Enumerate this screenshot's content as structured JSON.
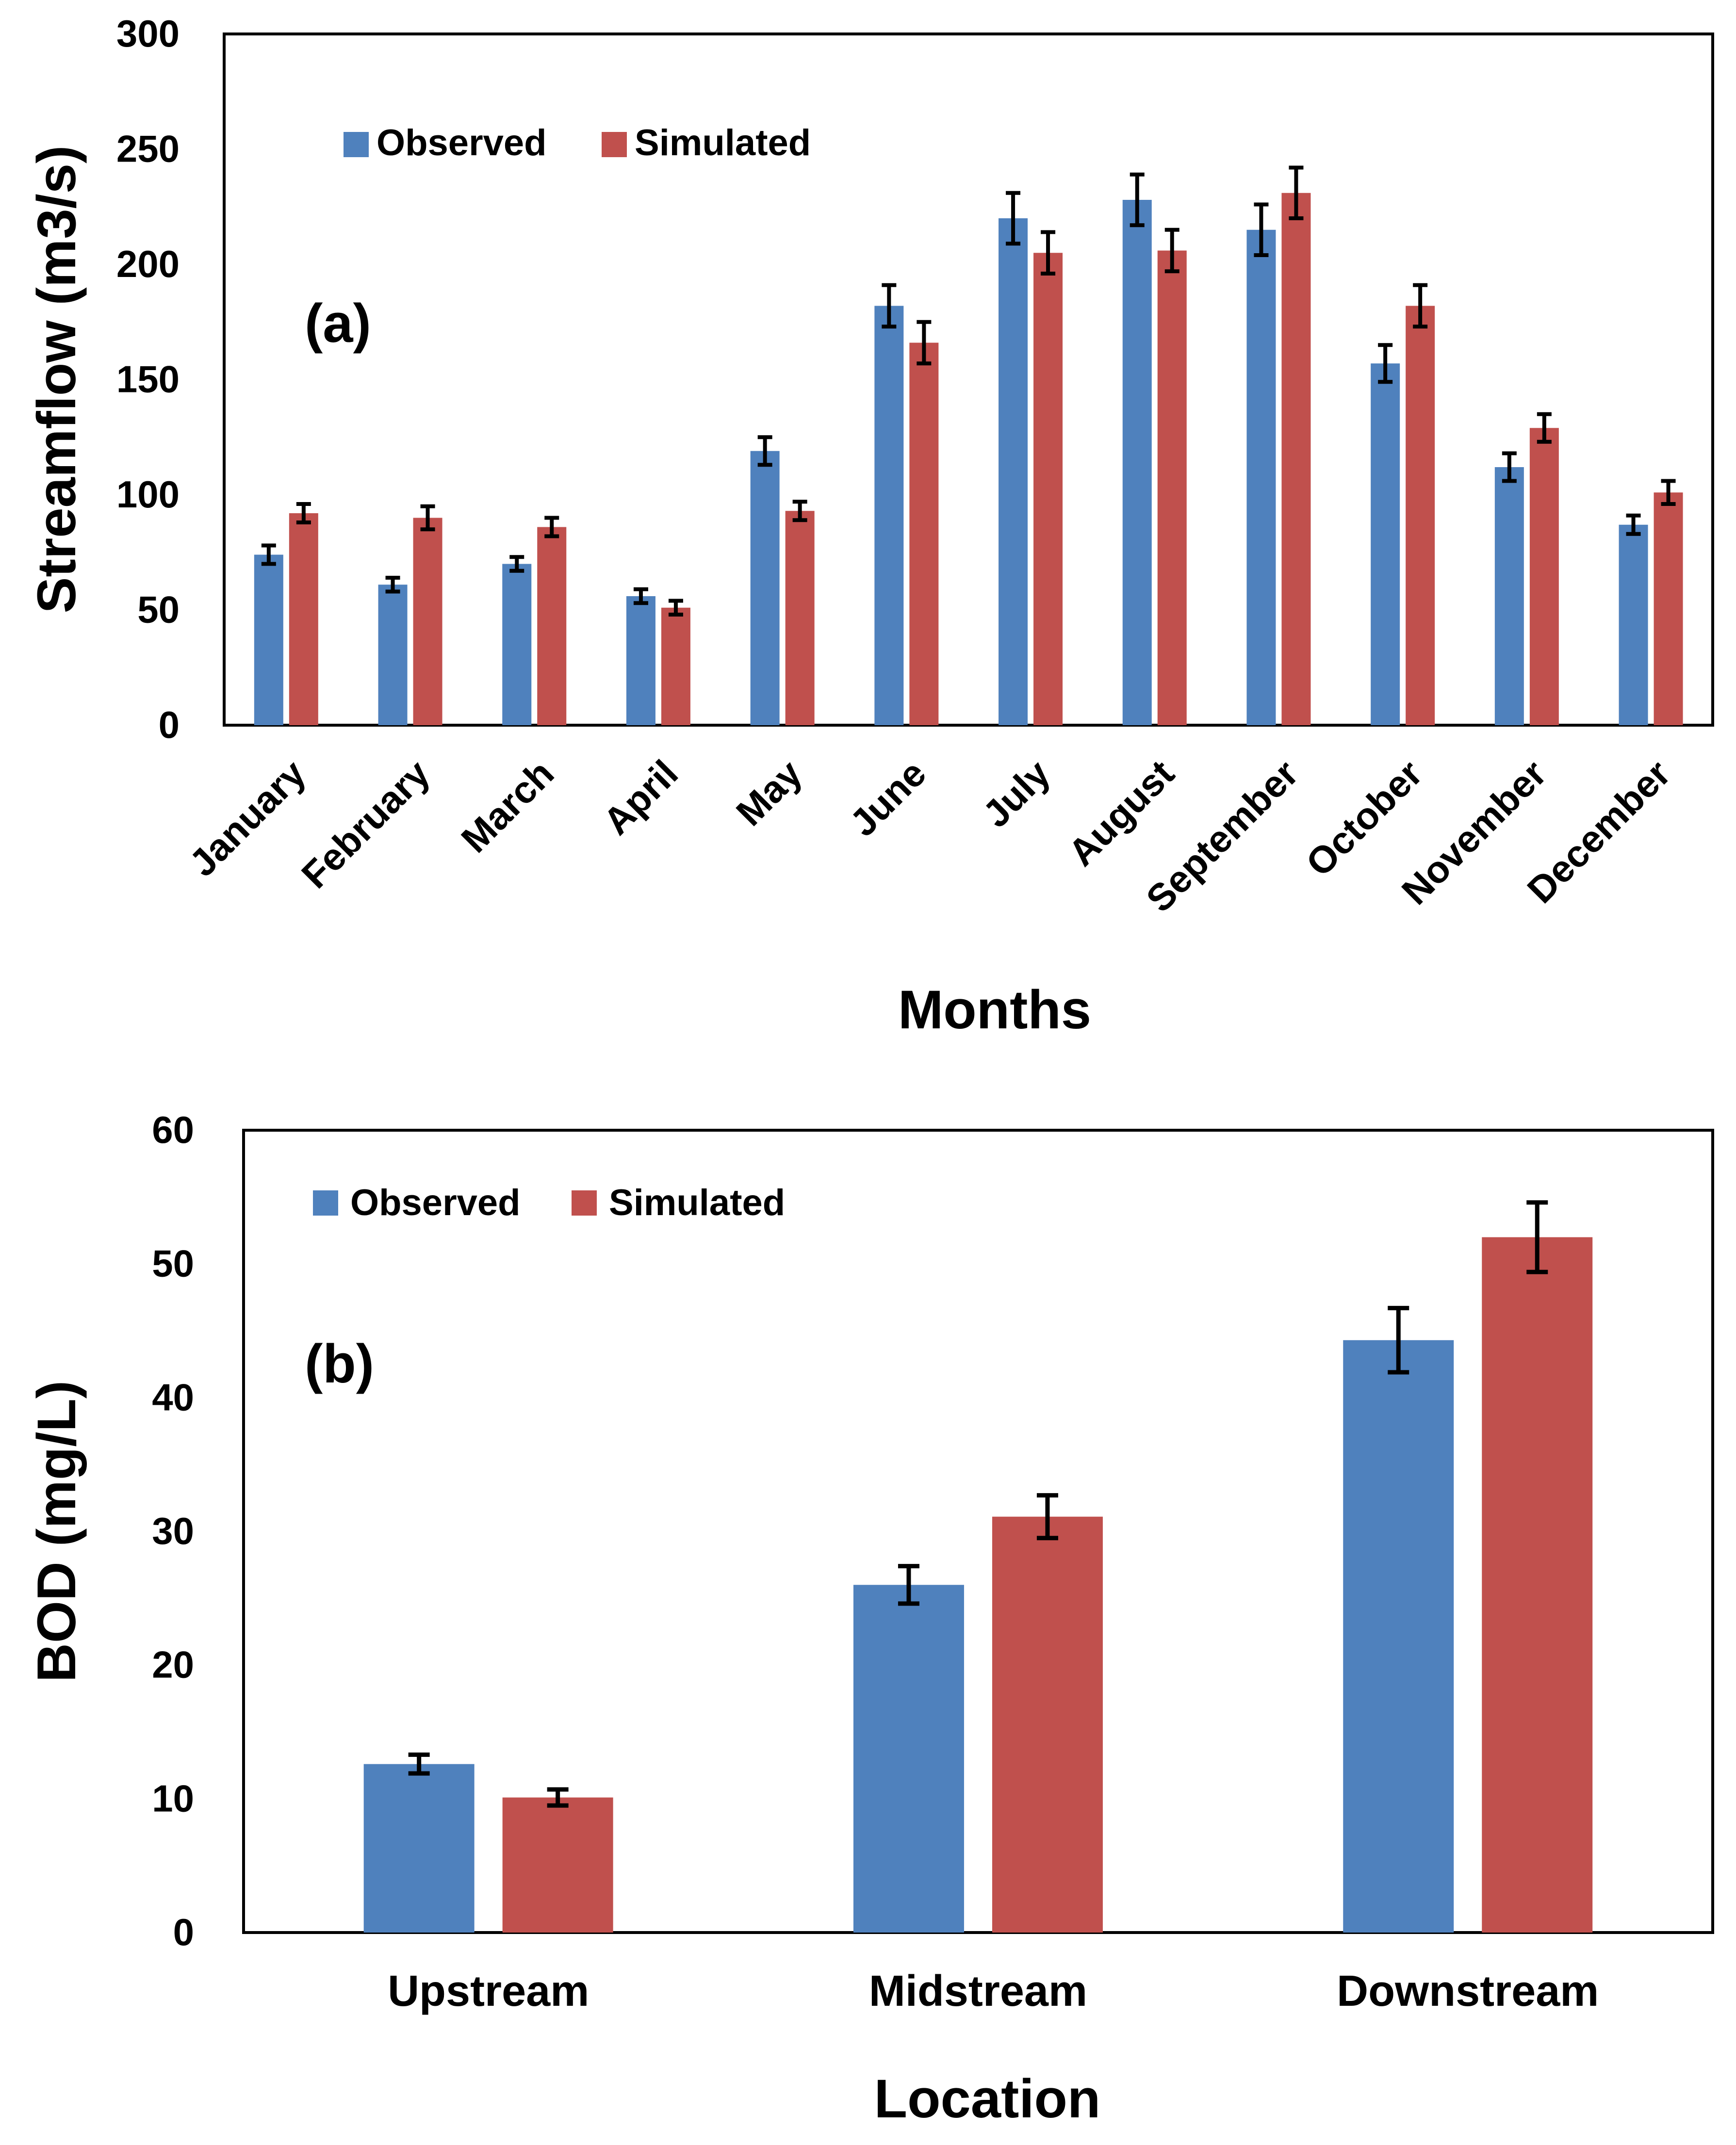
{
  "colors": {
    "observed": "#4f81bd",
    "simulated": "#c0504d",
    "axis": "#000000",
    "error_bar": "#000000"
  },
  "chart_data": [
    {
      "id": "a",
      "type": "bar",
      "panel_label": "(a)",
      "xlabel": "Months",
      "ylabel": "Streamflow (m3/s)",
      "ylim": [
        0,
        300
      ],
      "yticks": [
        0,
        50,
        100,
        150,
        200,
        250,
        300
      ],
      "grid": false,
      "legend_position": "top-left",
      "categories": [
        "January",
        "February",
        "March",
        "April",
        "May",
        "June",
        "July",
        "August",
        "September",
        "October",
        "November",
        "December"
      ],
      "series": [
        {
          "name": "Observed",
          "color_key": "observed",
          "values": [
            74,
            61,
            70,
            56,
            119,
            182,
            220,
            228,
            215,
            157,
            112,
            87
          ],
          "errors": [
            4,
            3,
            3,
            3,
            6,
            9,
            11,
            11,
            11,
            8,
            6,
            4
          ]
        },
        {
          "name": "Simulated",
          "color_key": "simulated",
          "values": [
            92,
            90,
            86,
            51,
            93,
            166,
            205,
            206,
            231,
            182,
            129,
            101
          ],
          "errors": [
            4,
            5,
            4,
            3,
            4,
            9,
            9,
            9,
            11,
            9,
            6,
            5
          ]
        }
      ]
    },
    {
      "id": "b",
      "type": "bar",
      "panel_label": "(b)",
      "xlabel": "Location",
      "ylabel": "BOD (mg/L)",
      "ylim": [
        0,
        60
      ],
      "yticks": [
        0,
        10,
        20,
        30,
        40,
        50,
        60
      ],
      "grid": false,
      "legend_position": "top-left",
      "categories": [
        "Upstream",
        "Midstream",
        "Downstream"
      ],
      "series": [
        {
          "name": "Observed",
          "color_key": "observed",
          "values": [
            12.6,
            26,
            44.3
          ],
          "errors": [
            0.7,
            1.4,
            2.4
          ]
        },
        {
          "name": "Simulated",
          "color_key": "simulated",
          "values": [
            10.1,
            31.1,
            52
          ],
          "errors": [
            0.6,
            1.6,
            2.6
          ]
        }
      ]
    }
  ]
}
